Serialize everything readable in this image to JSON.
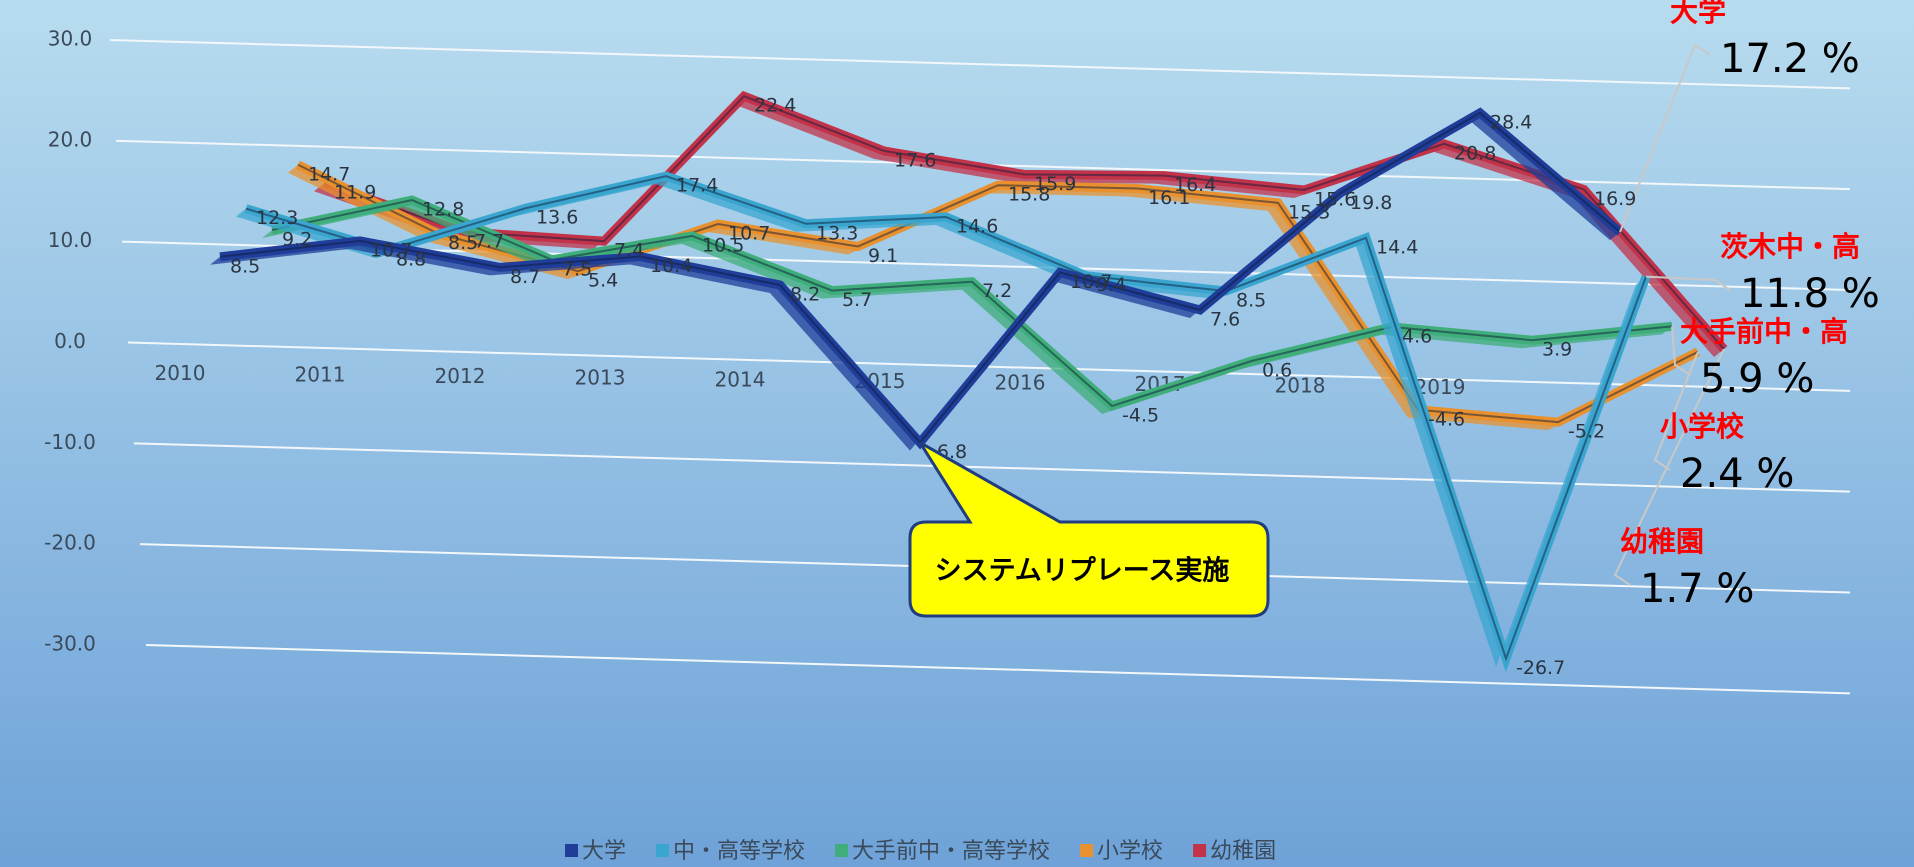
{
  "chart_data": {
    "type": "line3d",
    "categories": [
      "2010",
      "2011",
      "2012",
      "2013",
      "2014",
      "2015",
      "2016",
      "2017",
      "2018",
      "2019",
      null
    ],
    "ylim": [
      -30,
      30
    ],
    "yticks": [
      {
        "value": -30,
        "label": "-30.0"
      },
      {
        "value": -20,
        "label": "-20.0"
      },
      {
        "value": -10,
        "label": "-10.0"
      },
      {
        "value": 0,
        "label": "0.0"
      },
      {
        "value": 10,
        "label": "10.0"
      },
      {
        "value": 20,
        "label": "20.0"
      },
      {
        "value": 30,
        "label": "30.0"
      }
    ],
    "grid": true,
    "legend": "bottom",
    "series": [
      {
        "name": "大学",
        "color": "#1f3d99",
        "values": [
          8.5,
          10.7,
          8.7,
          10.4,
          8.2,
          -6.8,
          10.7,
          7.6,
          19.8,
          28.4,
          17.2
        ],
        "callout": {
          "name": "大学",
          "label": "17.2 %"
        }
      },
      {
        "name": "中・高等学校",
        "color": "#3aa6d0",
        "values": [
          12.3,
          8.8,
          13.6,
          17.4,
          13.3,
          14.6,
          9.4,
          8.5,
          14.4,
          -26.7,
          11.8
        ],
        "callout": {
          "name": "茨木中・高",
          "label": "11.8 %"
        }
      },
      {
        "name": "大手前中・高等学校",
        "color": "#3fae7a",
        "values": [
          9.2,
          12.8,
          7.5,
          10.5,
          5.7,
          7.2,
          -4.5,
          0.6,
          4.6,
          3.9,
          5.9
        ],
        "callout": {
          "name": "大手前中・高",
          "label": "5.9 %"
        }
      },
      {
        "name": "小学校",
        "color": "#e8912e",
        "values": [
          14.7,
          8.5,
          5.4,
          10.7,
          9.1,
          15.8,
          16.1,
          15.3,
          -4.6,
          -5.2,
          2.4
        ],
        "callout": {
          "name": "小学校",
          "label": "2.4 %"
        }
      },
      {
        "name": "幼稚園",
        "color": "#c2334a",
        "values": [
          11.9,
          7.7,
          7.4,
          22.4,
          17.6,
          15.9,
          16.4,
          15.6,
          20.8,
          16.9,
          1.7
        ],
        "callout": {
          "name": "幼稚園",
          "label": "1.7 %"
        }
      }
    ],
    "annotations": [
      {
        "text": "システムリプレース実施",
        "series": 0,
        "index": 5
      }
    ]
  }
}
